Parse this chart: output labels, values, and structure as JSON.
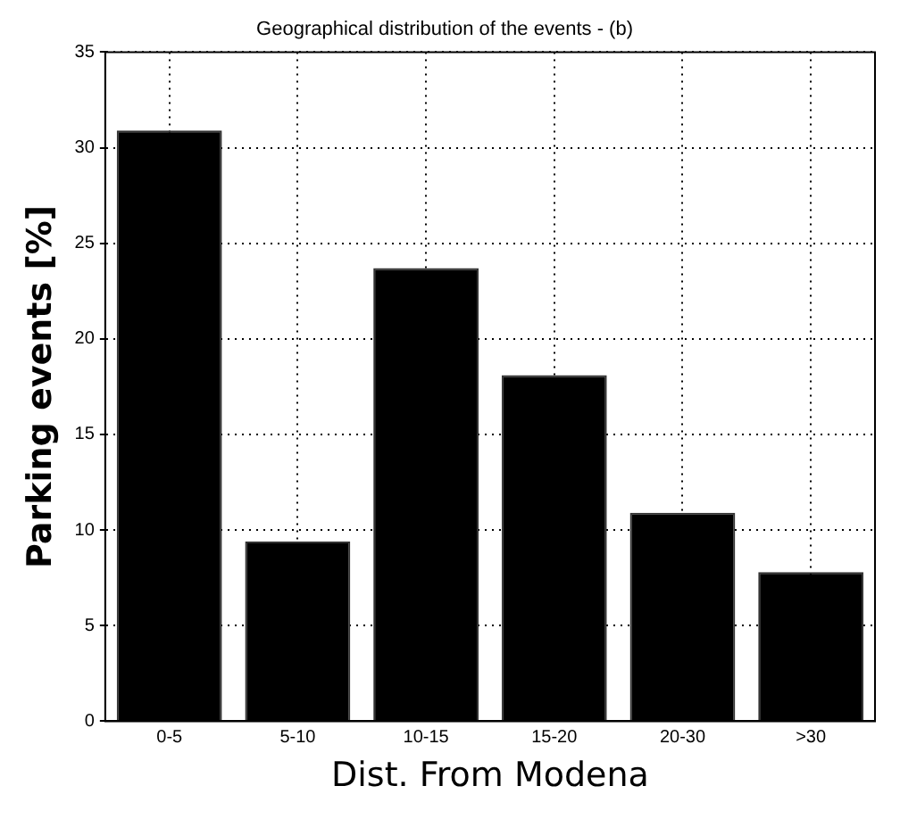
{
  "chart_data": {
    "type": "bar",
    "title": "Geographical distribution of the events - (b)",
    "xlabel": "Dist. From Modena",
    "ylabel": "Parking events [%]",
    "categories": [
      "0-5",
      "5-10",
      "10-15",
      "15-20",
      "20-30",
      ">30"
    ],
    "values": [
      30.9,
      9.4,
      23.7,
      18.1,
      10.9,
      7.8
    ],
    "color": "#000000",
    "ylim": [
      0,
      35
    ],
    "yticks": [
      0,
      5,
      10,
      15,
      20,
      25,
      30,
      35
    ],
    "grid": true
  }
}
